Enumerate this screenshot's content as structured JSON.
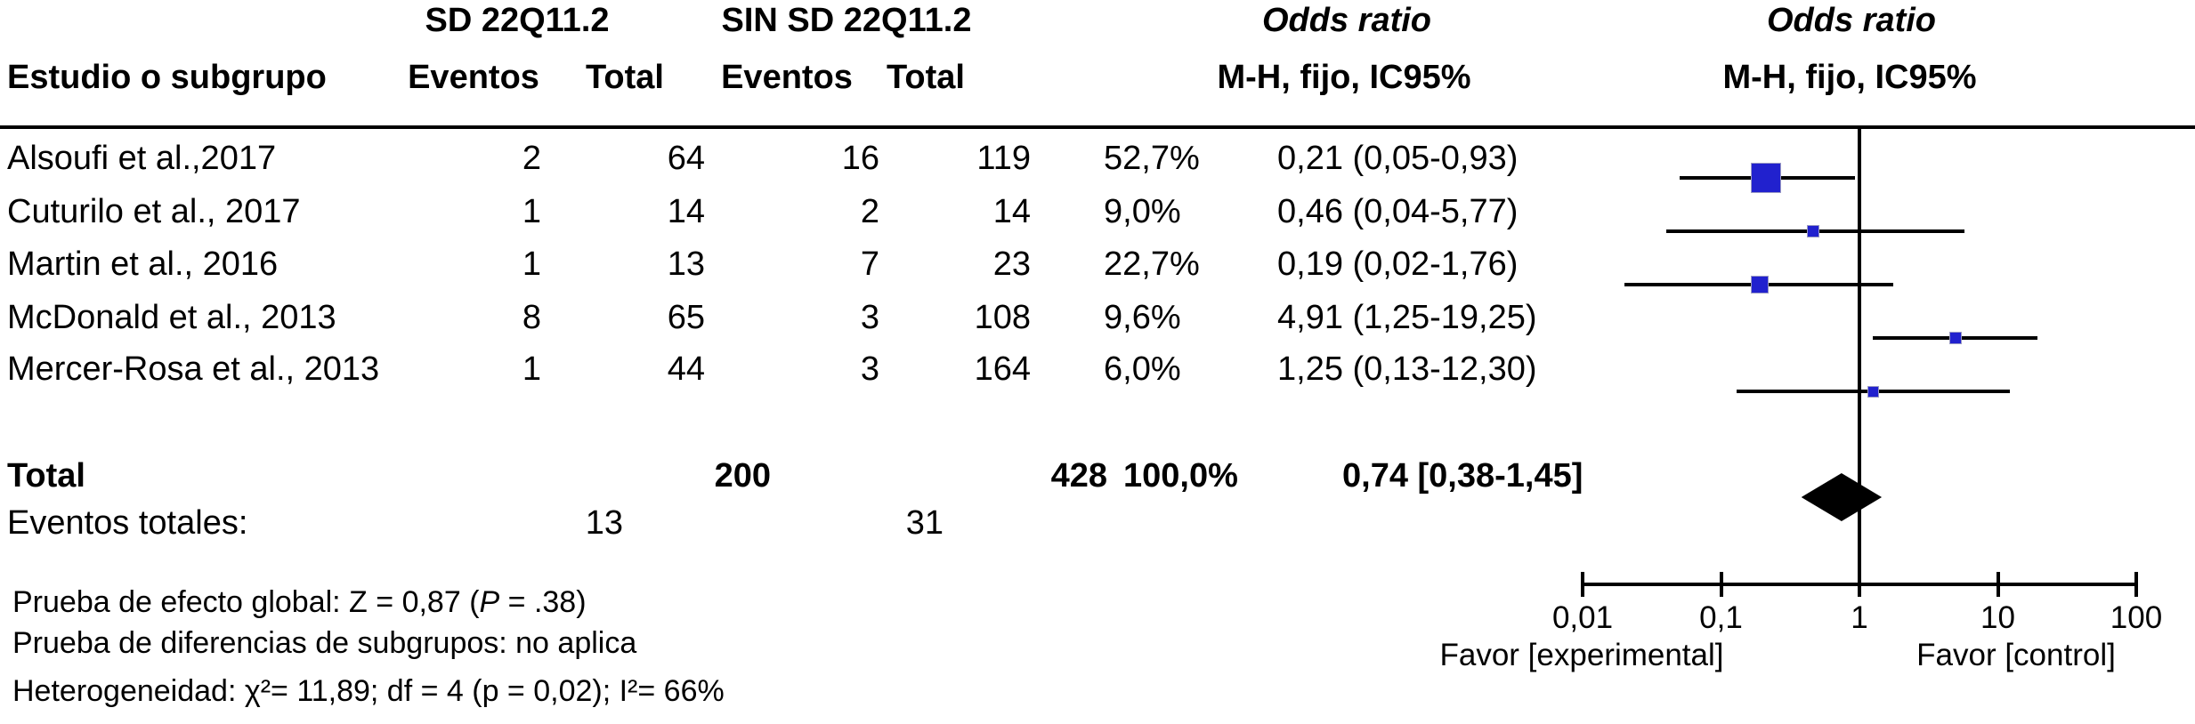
{
  "header": {
    "group1": "SD 22Q11.2",
    "group2": "SIN SD 22Q11.2",
    "odds_ratio_1": "Odds ratio",
    "odds_ratio_2": "Odds ratio",
    "study_col": "Estudio o subgrupo",
    "events_col_1": "Eventos",
    "total_col_1": "Total",
    "events_col_2": "Eventos",
    "total_col_2": "Total",
    "method_col_1": "M-H, fijo, IC95%",
    "method_col_2": "M-H, fijo, IC95%"
  },
  "chart_data": {
    "type": "forest",
    "scale": "log10",
    "xlim": [
      0.01,
      100
    ],
    "studies": [
      {
        "label": "Alsoufi et al.,2017",
        "events1": "2",
        "total1": "64",
        "events2": "16",
        "total2": "119",
        "weight": "52,7%",
        "weight_pct": 52.7,
        "or_text": "0,21 (0,05-0,93)",
        "or": 0.21,
        "ci_low": 0.05,
        "ci_high": 0.93
      },
      {
        "label": "Cuturilo et al., 2017",
        "events1": "1",
        "total1": "14",
        "events2": "2",
        "total2": "14",
        "weight": "9,0%",
        "weight_pct": 9.0,
        "or_text": "0,46 (0,04-5,77)",
        "or": 0.46,
        "ci_low": 0.04,
        "ci_high": 5.77
      },
      {
        "label": "Martin et al., 2016",
        "events1": "1",
        "total1": "13",
        "events2": "7",
        "total2": "23",
        "weight": "22,7%",
        "weight_pct": 22.7,
        "or_text": "0,19 (0,02-1,76)",
        "or": 0.19,
        "ci_low": 0.02,
        "ci_high": 1.76
      },
      {
        "label": "McDonald et al., 2013",
        "events1": "8",
        "total1": "65",
        "events2": "3",
        "total2": "108",
        "weight": "9,6%",
        "weight_pct": 9.6,
        "or_text": "4,91 (1,25-19,25)",
        "or": 4.91,
        "ci_low": 1.25,
        "ci_high": 19.25
      },
      {
        "label": "Mercer-Rosa et al., 2013",
        "events1": "1",
        "total1": "44",
        "events2": "3",
        "total2": "164",
        "weight": "6,0%",
        "weight_pct": 6.0,
        "or_text": "1,25 (0,13-12,30)",
        "or": 1.25,
        "ci_low": 0.13,
        "ci_high": 12.3
      }
    ],
    "total": {
      "label": "Total",
      "total1": "200",
      "total2": "428",
      "weight": "100,0%",
      "or_text": "0,74 [0,38-1,45]",
      "or": 0.74,
      "ci_low": 0.38,
      "ci_high": 1.45
    },
    "total_events": {
      "label": "Eventos totales:",
      "events1": "13",
      "events2": "31"
    },
    "axis": {
      "ticks": [
        {
          "label": "0,01",
          "value": 0.01
        },
        {
          "label": "0,1",
          "value": 0.1
        },
        {
          "label": "1",
          "value": 1
        },
        {
          "label": "10",
          "value": 10
        },
        {
          "label": "100",
          "value": 100
        }
      ],
      "favor_left": "Favor [experimental]",
      "favor_right": "Favor [control]"
    }
  },
  "footer": {
    "line1_pre": "Prueba de efecto global: Z = 0,87 (",
    "line1_italic": "P",
    "line1_post": " = .38)",
    "line2": "Prueba de diferencias de subgrupos: no aplica",
    "line3": "Heterogeneidad: χ²= 11,89; df = 4 (p = 0,02); I²= 66%"
  },
  "colors": {
    "marker_blue": "#2121ce",
    "line_black": "#000000"
  }
}
